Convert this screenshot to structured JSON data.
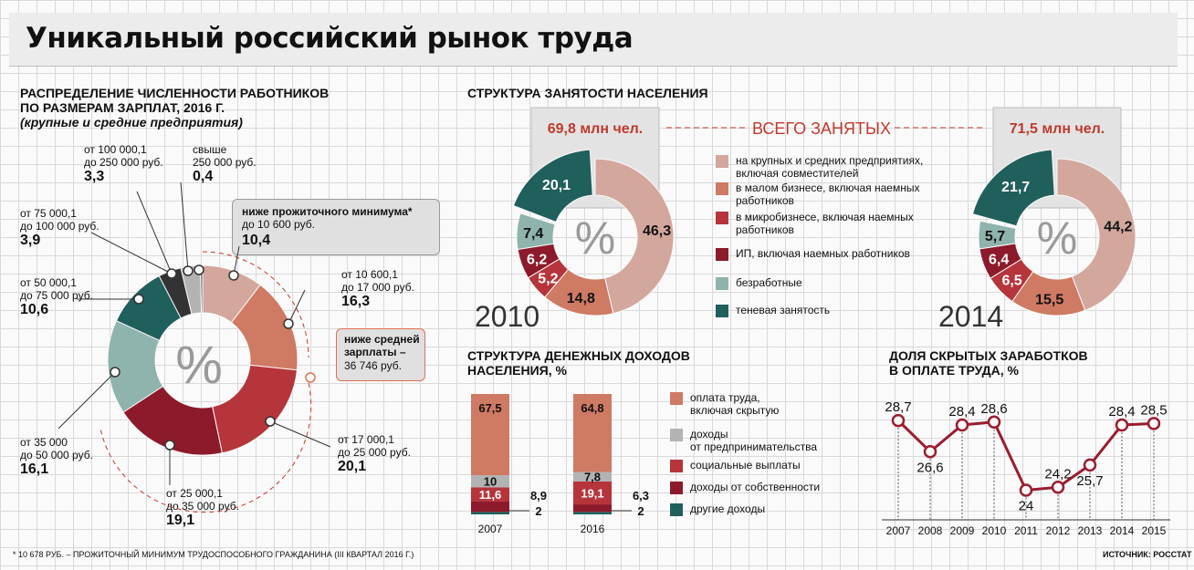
{
  "title": "Уникальный российский рынок труда",
  "footnote": "* 10 678 РУБ. – ПРОЖИТОЧНЫЙ МИНИМУМ ТРУДОСПОСОБНОГО ГРАЖДАНИНА (III КВАРТАЛ 2016 Г.)",
  "source": "ИСТОЧНИК: РОССТАТ",
  "colors": {
    "c1": "#d4a79c",
    "c2": "#cf7a63",
    "c3": "#b5353a",
    "c4": "#8c1a2a",
    "c5": "#8fb3ad",
    "c6": "#1f5f5c",
    "gray": "#b3b3b3",
    "dark": "#333333",
    "line": "#9b1c2e"
  },
  "salary": {
    "title1": "РАСПРЕДЕЛЕНИЕ ЧИСЛЕННОСТИ РАБОТНИКОВ",
    "title2": "ПО РАЗМЕРАМ ЗАРПЛАТ, 2016 Г.",
    "subtitle": "(крупные и средние предприятия)",
    "center": "%",
    "callout_min_line1": "ниже прожиточного минимума*",
    "callout_min_line2": "до 10 600 руб.",
    "callout_min_value": "10,4",
    "callout_avg_line1": "ниже средней",
    "callout_avg_line2": "зарплаты –",
    "callout_avg_line3": "36 746 руб.",
    "segments": [
      {
        "l1": "от 10 600,1",
        "l2": "до 17 000 руб.",
        "value": "16,3",
        "num": 16.3
      },
      {
        "l1": "от 17 000,1",
        "l2": "до 25 000 руб.",
        "value": "20,1",
        "num": 20.1
      },
      {
        "l1": "от 25 000,1",
        "l2": "до 35 000 руб.",
        "value": "19,1",
        "num": 19.1
      },
      {
        "l1": "от 35 000",
        "l2": "до 50 000 руб.",
        "value": "16,1",
        "num": 16.1
      },
      {
        "l1": "от 50 000,1",
        "l2": "до 75 000 руб.",
        "value": "10,6",
        "num": 10.6
      },
      {
        "l1": "от 75 000,1",
        "l2": "до 100 000 руб.",
        "value": "3,9",
        "num": 3.9
      },
      {
        "l1": "от 100 000,1",
        "l2": "до 250 000 руб.",
        "value": "3,3",
        "num": 3.3
      },
      {
        "l1": "свыше",
        "l2": "250 000 руб.",
        "value": "0,4",
        "num": 0.4
      }
    ]
  },
  "employment": {
    "title": "СТРУКТУРА ЗАНЯТОСТИ НАСЕЛЕНИЯ",
    "total_label": "ВСЕГО ЗАНЯТЫХ",
    "center": "%",
    "legend": [
      "на крупных и средних предприятиях,|включая совместителей",
      "в малом бизнесе, включая наемных|работников",
      "в микробизнесе, включая наемных|работников",
      "ИП, включая наемных работников",
      "безработные",
      "теневая занятость"
    ],
    "years": [
      {
        "year": "2010",
        "total": "69,8 млн чел.",
        "values": [
          "46,3",
          "14,8",
          "5,2",
          "6,2",
          "7,4",
          "20,1"
        ],
        "nums": [
          46.3,
          14.8,
          5.2,
          6.2,
          7.4,
          20.1
        ]
      },
      {
        "year": "2014",
        "total": "71,5 млн чел.",
        "values": [
          "44,2",
          "15,5",
          "6,5",
          "6,4",
          "5,7",
          "21,7"
        ],
        "nums": [
          44.2,
          15.5,
          6.5,
          6.4,
          5.7,
          21.7
        ]
      }
    ]
  },
  "income": {
    "title1": "СТРУКТУРА ДЕНЕЖНЫХ ДОХОДОВ",
    "title2": "НАСЕЛЕНИЯ, %",
    "legend": [
      "оплата труда,|включая скрытую",
      "доходы|от предпринимательства",
      "социальные выплаты",
      "доходы от собственности",
      "другие доходы"
    ],
    "bars": [
      {
        "year": "2007",
        "values": [
          "67,5",
          "10",
          "11,6",
          "8,9",
          "2"
        ],
        "nums": [
          67.5,
          10,
          11.6,
          8.9,
          2
        ]
      },
      {
        "year": "2016",
        "values": [
          "64,8",
          "7,8",
          "19,1",
          "6,3",
          "2"
        ],
        "nums": [
          64.8,
          7.8,
          19.1,
          6.3,
          2
        ]
      }
    ]
  },
  "chart_data": [
    {
      "type": "pie",
      "title": "Распределение численности работников по размерам зарплат, 2016 г.",
      "categories": [
        "до 10 600 руб.",
        "от 10 600,1 до 17 000 руб.",
        "от 17 000,1 до 25 000 руб.",
        "от 25 000,1 до 35 000 руб.",
        "от 35 000 до 50 000 руб.",
        "от 50 000,1 до 75 000 руб.",
        "от 75 000,1 до 100 000 руб.",
        "от 100 000,1 до 250 000 руб.",
        "свыше 250 000 руб."
      ],
      "values": [
        10.4,
        16.3,
        20.1,
        19.1,
        16.1,
        10.6,
        3.9,
        3.3,
        0.4
      ]
    },
    {
      "type": "pie",
      "title": "Структура занятости населения, 2010",
      "total": "69,8 млн чел.",
      "categories": [
        "крупные и средние предприятия",
        "малый бизнес",
        "микробизнес",
        "ИП",
        "безработные",
        "теневая занятость"
      ],
      "values": [
        46.3,
        14.8,
        5.2,
        6.2,
        7.4,
        20.1
      ]
    },
    {
      "type": "pie",
      "title": "Структура занятости населения, 2014",
      "total": "71,5 млн чел.",
      "categories": [
        "крупные и средние предприятия",
        "малый бизнес",
        "микробизнес",
        "ИП",
        "безработные",
        "теневая занятость"
      ],
      "values": [
        44.2,
        15.5,
        6.5,
        6.4,
        5.7,
        21.7
      ]
    },
    {
      "type": "bar",
      "stacked": true,
      "title": "Структура денежных доходов населения, %",
      "categories": [
        "2007",
        "2016"
      ],
      "series": [
        {
          "name": "оплата труда, включая скрытую",
          "values": [
            67.5,
            64.8
          ]
        },
        {
          "name": "доходы от предпринимательства",
          "values": [
            10,
            7.8
          ]
        },
        {
          "name": "социальные выплаты",
          "values": [
            11.6,
            19.1
          ]
        },
        {
          "name": "доходы от собственности",
          "values": [
            8.9,
            6.3
          ]
        },
        {
          "name": "другие доходы",
          "values": [
            2,
            2
          ]
        }
      ]
    },
    {
      "type": "line",
      "title": "Доля скрытых заработков в оплате труда, %",
      "x": [
        "2007",
        "2008",
        "2009",
        "2010",
        "2011",
        "2012",
        "2013",
        "2014",
        "2015"
      ],
      "labels": [
        "28,7",
        "26,6",
        "28,4",
        "28,6",
        "24",
        "24,2",
        "25,7",
        "28,4",
        "28,5"
      ],
      "y": [
        28.7,
        26.6,
        28.4,
        28.6,
        24,
        24.2,
        25.7,
        28.4,
        28.5
      ],
      "ylim": [
        22,
        30
      ]
    }
  ],
  "hidden": {
    "title1": "ДОЛЯ СКРЫТЫХ ЗАРАБОТКОВ",
    "title2": "В ОПЛАТЕ ТРУДА, %"
  }
}
